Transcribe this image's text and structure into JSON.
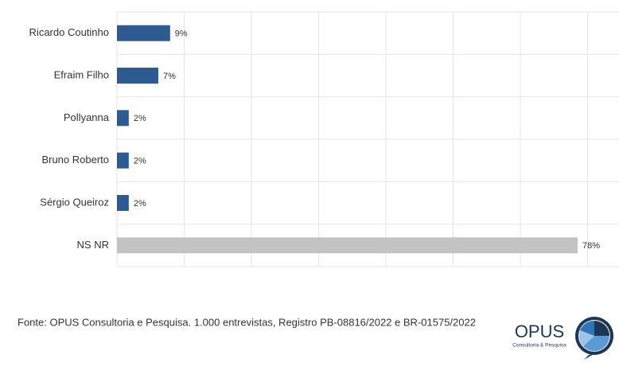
{
  "chart_data": {
    "type": "barh",
    "categories": [
      "Ricardo Coutinho",
      "Efraim Filho",
      "Pollyanna",
      "Bruno Roberto",
      "Sérgio Queiroz",
      "NS NR"
    ],
    "values": [
      9,
      7,
      2,
      2,
      2,
      78
    ],
    "value_labels": [
      "9%",
      "7%",
      "2%",
      "2%",
      "2%",
      "78%"
    ],
    "colors": [
      "#2d5a90",
      "#2d5a90",
      "#2d5a90",
      "#2d5a90",
      "#2d5a90",
      "#c3c3c3"
    ],
    "xlim": [
      0,
      85
    ],
    "source": "Fonte: OPUS Consultoria e Pesquisa. 1.000 entrevistas, Registro PB-08816/2022 e BR-01575/2022"
  },
  "logo": {
    "name": "OPUS",
    "tagline": "Consultoria & Pesquisa"
  }
}
